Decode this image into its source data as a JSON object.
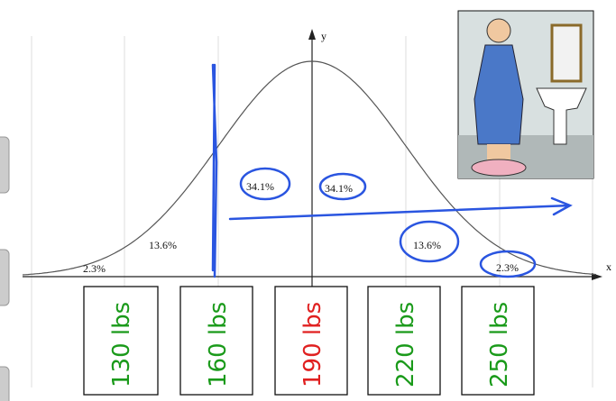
{
  "axes": {
    "y_label": "y",
    "x_label": "x"
  },
  "regions": [
    "2.3%",
    "13.6%",
    "34.1%",
    "34.1%",
    "13.6%",
    "2.3%"
  ],
  "weights": [
    "130 lbs",
    "160 lbs",
    "190 lbs",
    "220 lbs",
    "250 lbs"
  ]
}
